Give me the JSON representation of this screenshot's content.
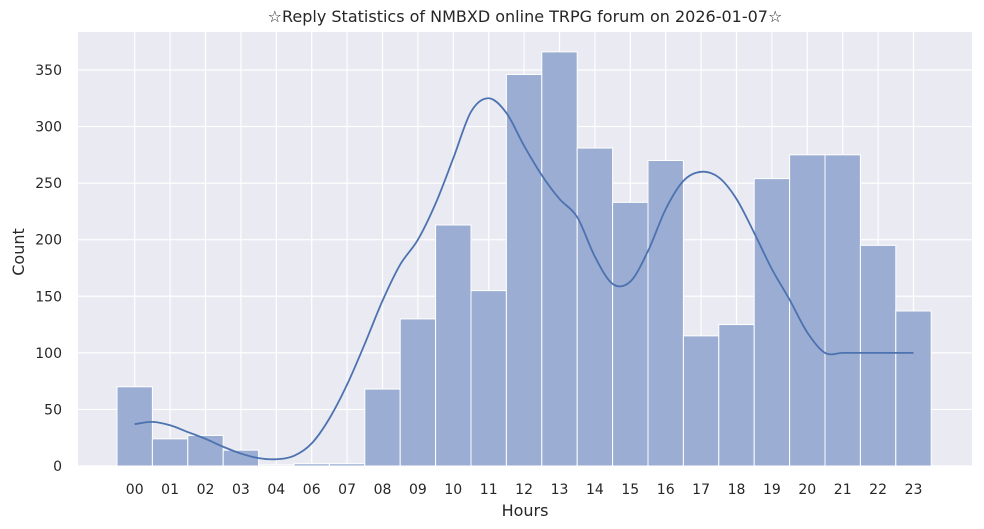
{
  "colors": {
    "background": "#ffffff",
    "plot_bg": "#eaeaf2",
    "grid": "#ffffff",
    "bar_fill": "#9badd2",
    "bar_edge": "#ffffff",
    "kde_line": "#4c72b0",
    "text": "#262626"
  },
  "chart_data": {
    "type": "bar",
    "title": "☆Reply Statistics of NMBXD online TRPG forum on 2026-01-07☆",
    "xlabel": "Hours",
    "ylabel": "Count",
    "ylim": [
      0,
      385
    ],
    "yticks": [
      0,
      50,
      100,
      150,
      200,
      250,
      300,
      350
    ],
    "grid": true,
    "categories": [
      "00",
      "01",
      "02",
      "03",
      "04",
      "06",
      "07",
      "08",
      "09",
      "10",
      "11",
      "12",
      "13",
      "14",
      "15",
      "16",
      "17",
      "18",
      "19",
      "20",
      "21",
      "22",
      "23"
    ],
    "series": [
      {
        "values": [
          70,
          24,
          27,
          14,
          1,
          2,
          2,
          68,
          130,
          213,
          155,
          346,
          366,
          281,
          233,
          270,
          115,
          125,
          254,
          275,
          275,
          195,
          137
        ]
      }
    ],
    "kde": {
      "x": [
        0,
        0.5,
        1,
        1.5,
        2,
        2.5,
        3,
        3.5,
        4,
        4.5,
        5,
        5.5,
        6,
        6.5,
        7,
        7.5,
        8,
        8.5,
        9,
        9.5,
        10,
        10.5,
        11,
        11.5,
        12,
        12.5,
        13,
        13.5,
        14,
        14.5,
        15,
        15.5,
        16,
        16.5,
        17,
        17.5,
        18,
        18.5,
        19,
        19.5,
        20,
        20.5,
        21,
        21.5,
        22
      ],
      "y": [
        37,
        39,
        36,
        30,
        24,
        17,
        11,
        7,
        6,
        9,
        20,
        42,
        72,
        108,
        146,
        178,
        200,
        232,
        272,
        313,
        325,
        312,
        283,
        257,
        236,
        220,
        185,
        161,
        163,
        190,
        227,
        252,
        260,
        255,
        236,
        206,
        174,
        147,
        118,
        100,
        100,
        100,
        100,
        100,
        100
      ]
    }
  }
}
